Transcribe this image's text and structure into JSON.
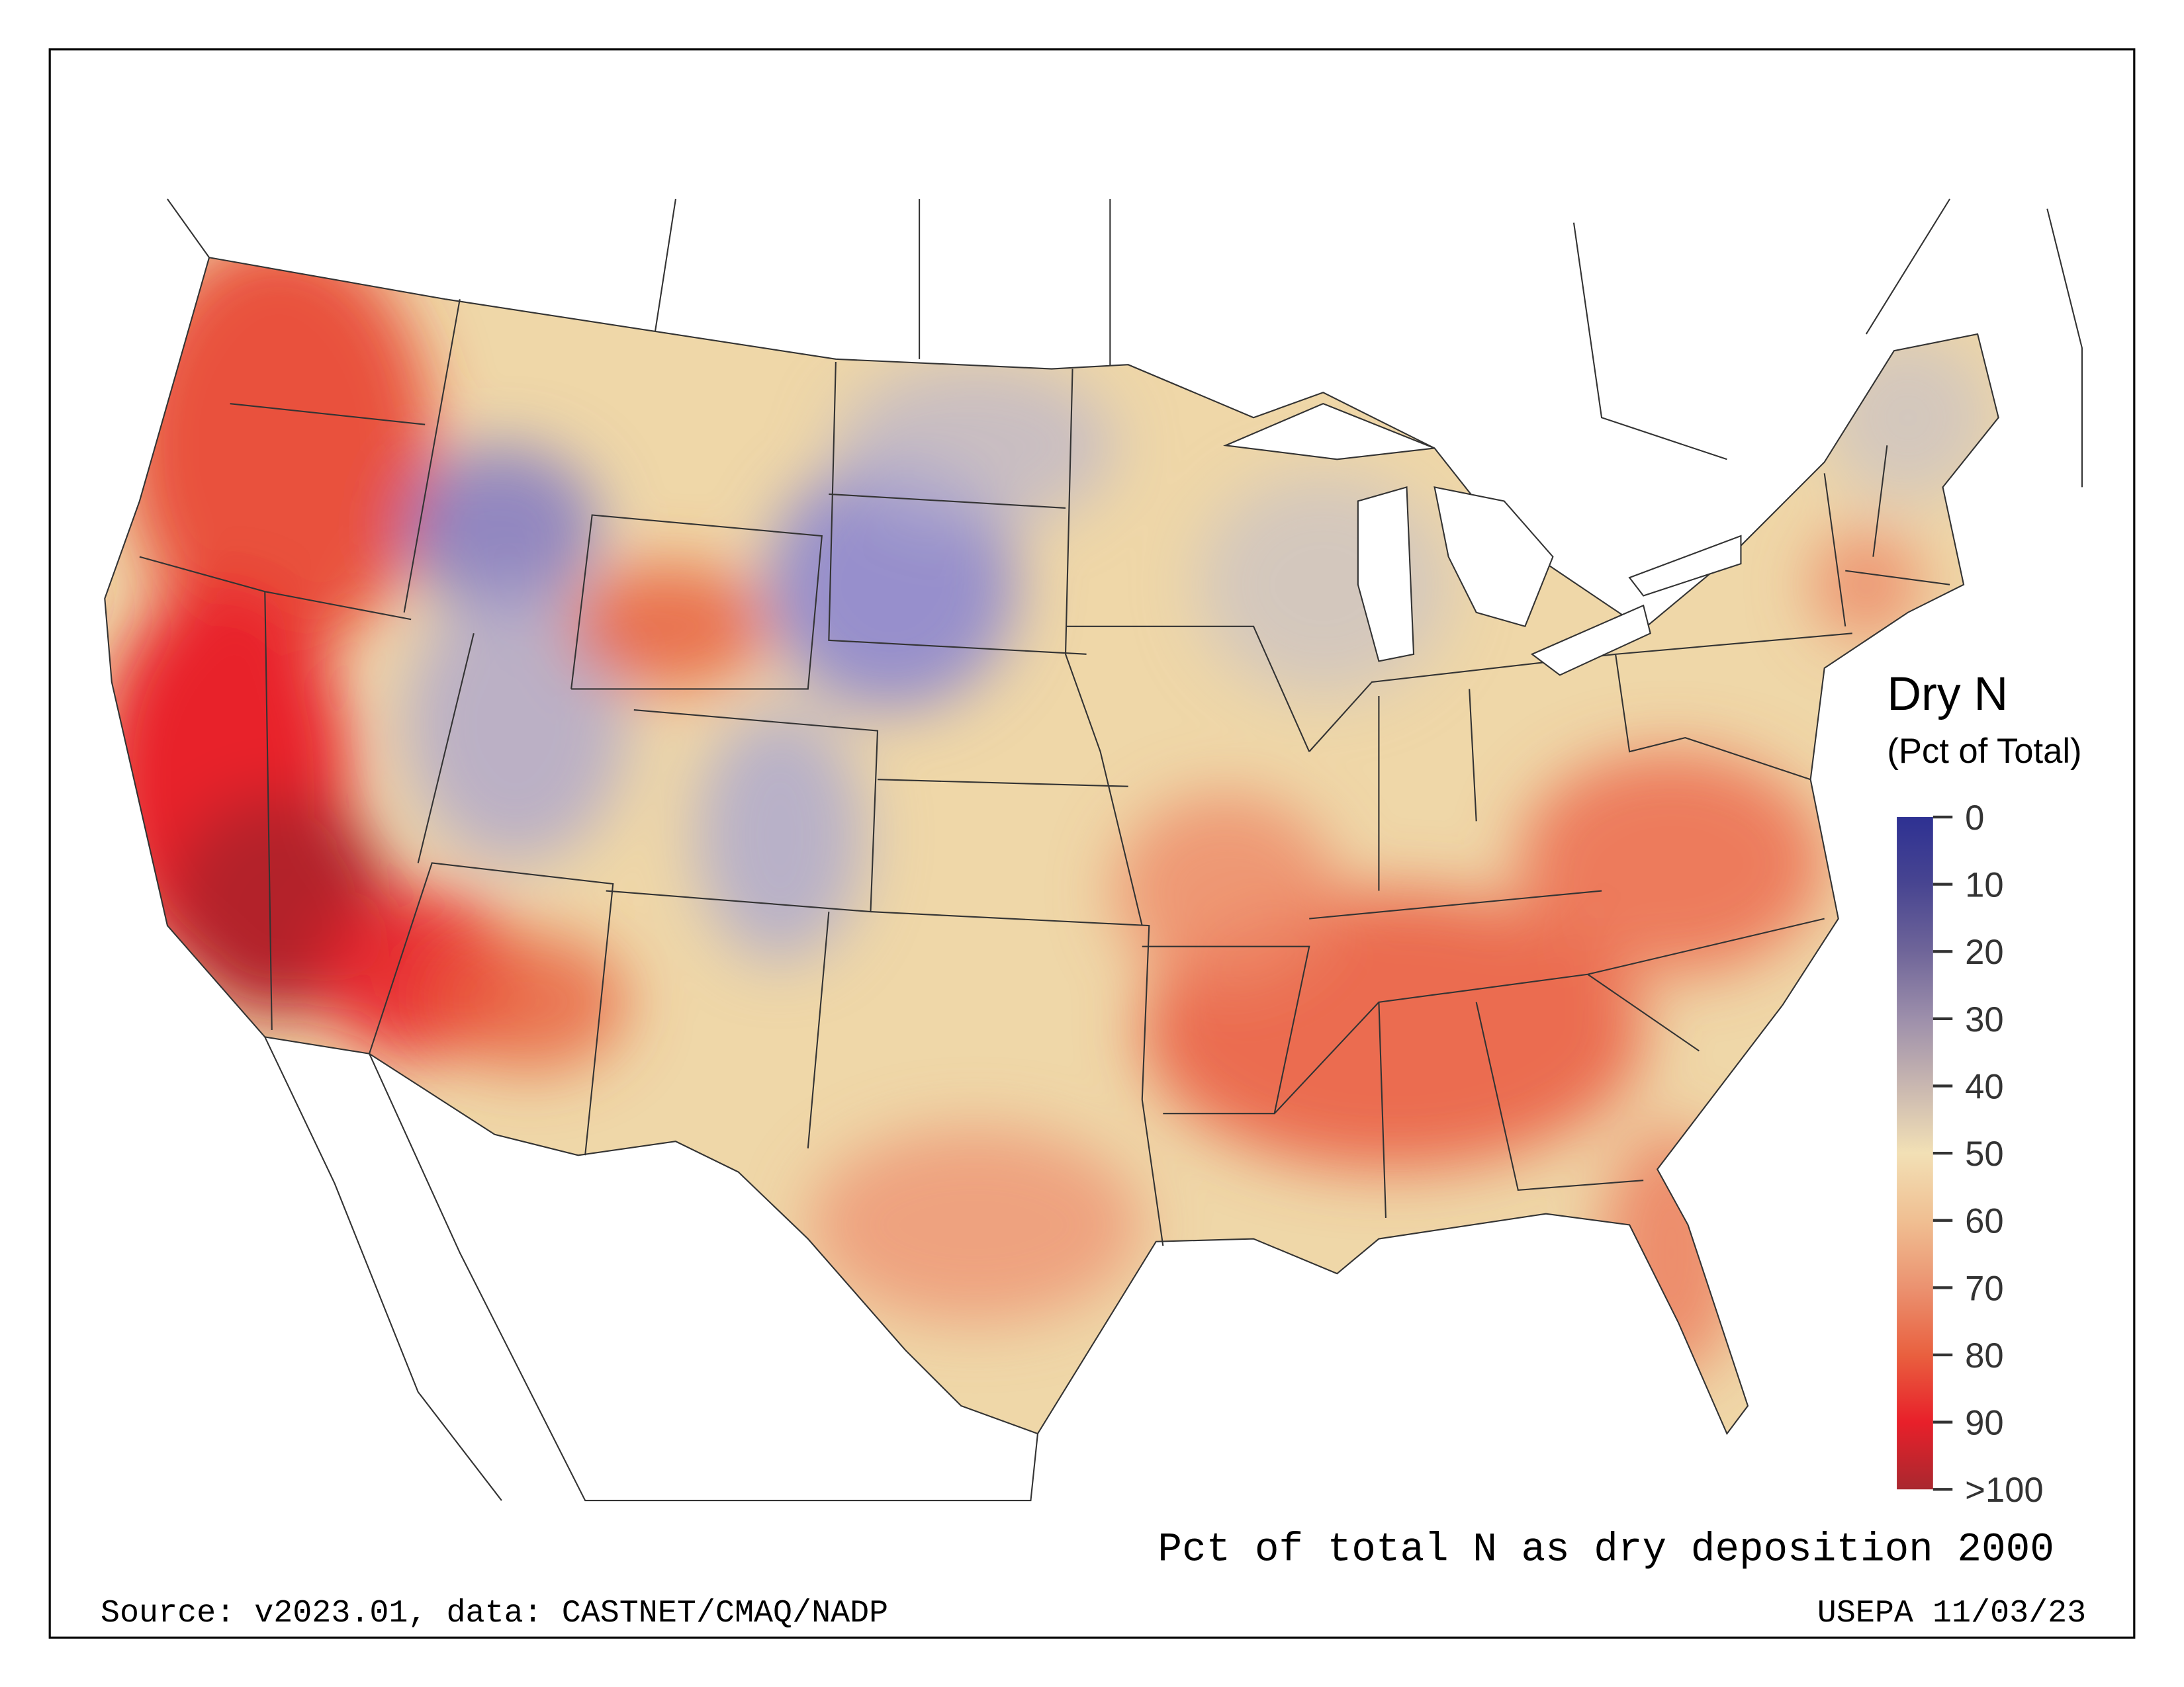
{
  "map": {
    "title": "Pct of total N as dry deposition 2000",
    "source": "Source: v2023.01, data: CASTNET/CMAQ/NADP",
    "credit": "USEPA 11/03/23",
    "region": "Contiguous United States"
  },
  "legend": {
    "title": "Dry N",
    "subtitle": "(Pct of Total)",
    "ticks": [
      "0",
      "10",
      "20",
      "30",
      "40",
      "50",
      "60",
      "70",
      "80",
      "90",
      ">100"
    ],
    "colors": [
      "#2e3192",
      "#484591",
      "#6f6599",
      "#9d8fab",
      "#c9b7b0",
      "#f2e0b5",
      "#f0bf92",
      "#eb9270",
      "#e9603f",
      "#e8202a",
      "#a9282f"
    ]
  }
}
